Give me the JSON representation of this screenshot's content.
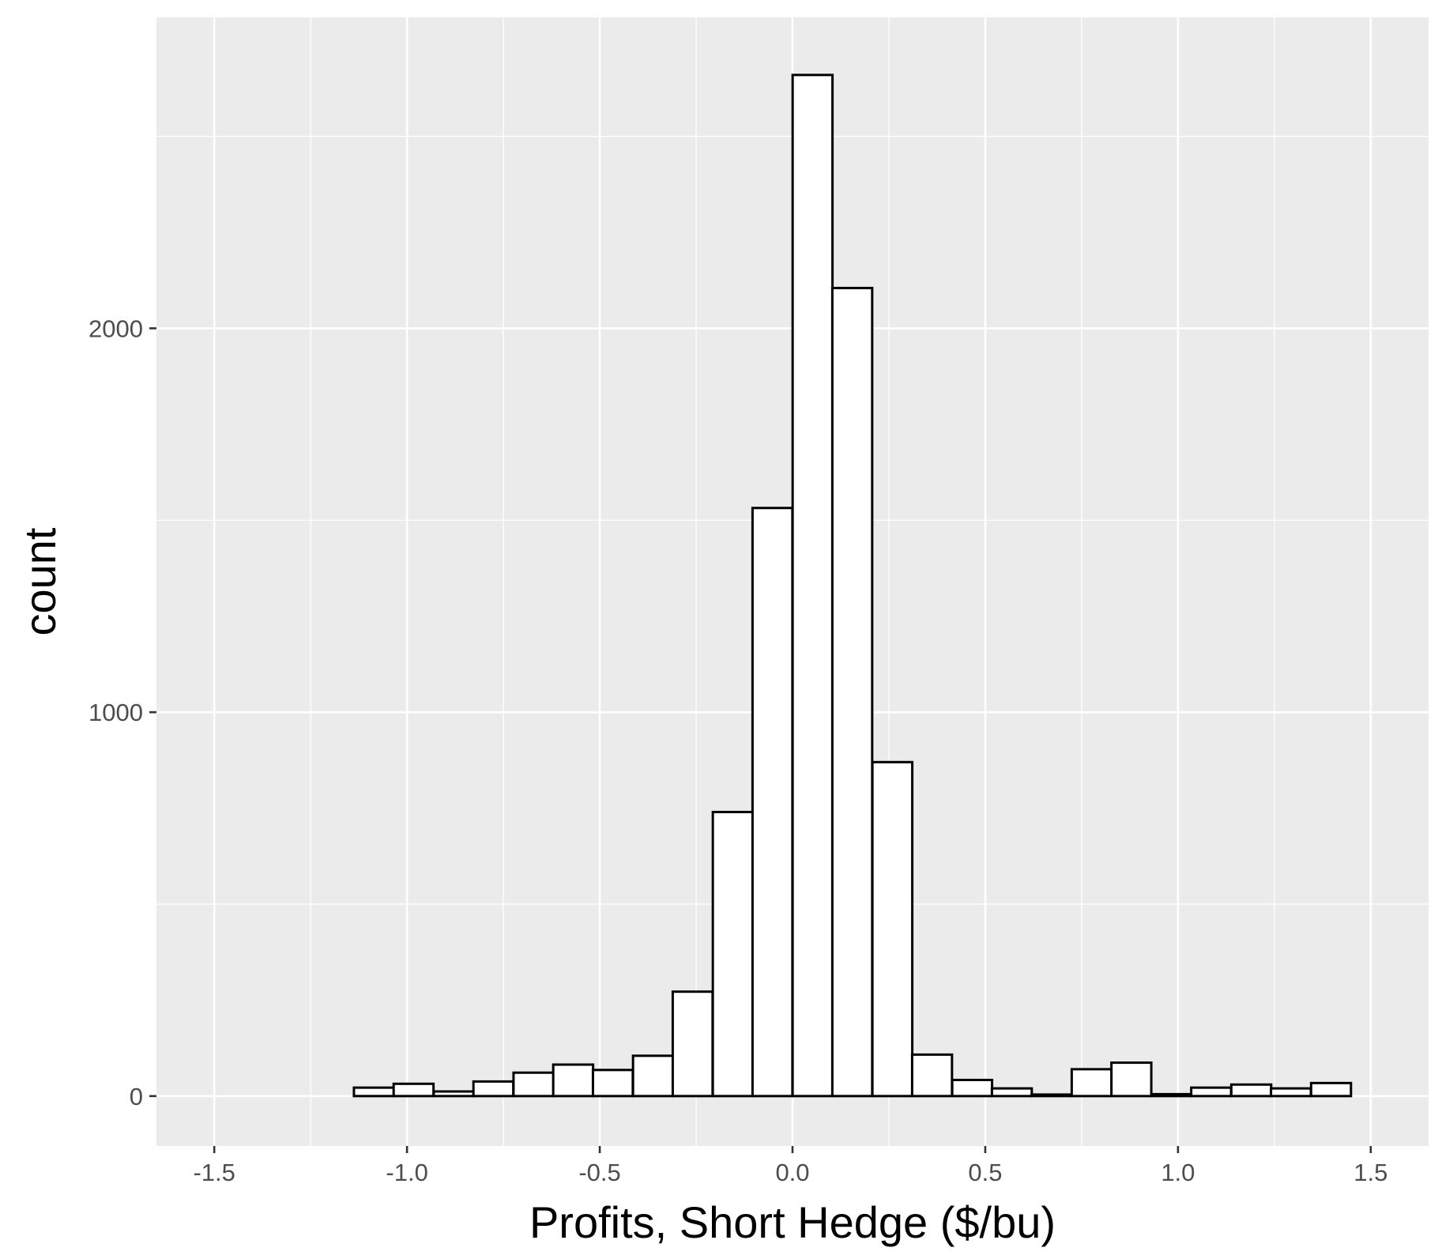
{
  "chart_data": {
    "type": "bar",
    "subtype": "histogram",
    "title": "",
    "xlabel": "Profits, Short Hedge ($/bu)",
    "ylabel": "count",
    "xlim": [
      -1.65,
      1.65
    ],
    "ylim": [
      -130,
      2810
    ],
    "x_ticks": [
      -1.5,
      -1.0,
      -0.5,
      0.0,
      0.5,
      1.0,
      1.5
    ],
    "x_tick_labels": [
      "-1.5",
      "-1.0",
      "-0.5",
      "0.0",
      "0.5",
      "1.0",
      "1.5"
    ],
    "y_ticks": [
      0,
      1000,
      2000
    ],
    "y_tick_labels": [
      "0",
      "1000",
      "2000"
    ],
    "grid": true,
    "legend": "none",
    "bin_width": 0.1034,
    "bins": [
      {
        "x": -1.5,
        "count": 0
      },
      {
        "x": -1.397,
        "count": 0
      },
      {
        "x": -1.293,
        "count": 0
      },
      {
        "x": -1.19,
        "count": 0
      },
      {
        "x": -1.086,
        "count": 22
      },
      {
        "x": -0.983,
        "count": 32
      },
      {
        "x": -0.879,
        "count": 12
      },
      {
        "x": -0.776,
        "count": 38
      },
      {
        "x": -0.672,
        "count": 61
      },
      {
        "x": -0.569,
        "count": 82
      },
      {
        "x": -0.466,
        "count": 68
      },
      {
        "x": -0.362,
        "count": 105
      },
      {
        "x": -0.259,
        "count": 272
      },
      {
        "x": -0.155,
        "count": 740
      },
      {
        "x": -0.052,
        "count": 1532
      },
      {
        "x": 0.052,
        "count": 2660
      },
      {
        "x": 0.155,
        "count": 2105
      },
      {
        "x": 0.259,
        "count": 870
      },
      {
        "x": 0.362,
        "count": 108
      },
      {
        "x": 0.466,
        "count": 42
      },
      {
        "x": 0.569,
        "count": 20
      },
      {
        "x": 0.672,
        "count": 4
      },
      {
        "x": 0.776,
        "count": 70
      },
      {
        "x": 0.879,
        "count": 87
      },
      {
        "x": 0.983,
        "count": 5
      },
      {
        "x": 1.086,
        "count": 22
      },
      {
        "x": 1.19,
        "count": 30
      },
      {
        "x": 1.293,
        "count": 20
      },
      {
        "x": 1.397,
        "count": 34
      },
      {
        "x": 1.5,
        "count": 0
      }
    ]
  },
  "colors": {
    "panel_background": "#ebebeb",
    "grid": "#ffffff",
    "bar_fill": "#ffffff",
    "bar_outline": "#000000",
    "tick_mark": "#333333"
  }
}
